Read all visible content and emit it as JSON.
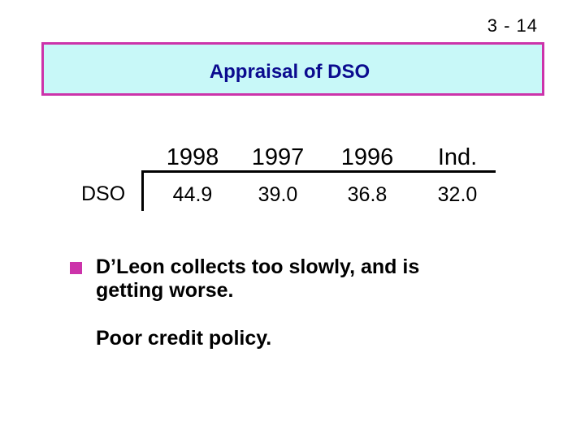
{
  "slide": {
    "number": "3 - 14",
    "title": "Appraisal of DSO"
  },
  "table": {
    "row_label": "DSO",
    "columns": [
      {
        "header": "1998",
        "value": "44.9"
      },
      {
        "header": "1997",
        "value": "39.0"
      },
      {
        "header": "1996",
        "value": "36.8"
      },
      {
        "header": "Ind.",
        "value": "32.0"
      }
    ]
  },
  "bullets": {
    "main_line1": "D’Leon collects too slowly, and is",
    "main_line2": "getting worse.",
    "sub": "Poor credit policy."
  },
  "colors": {
    "title_fill": "#c8f8f8",
    "title_border": "#cc33aa",
    "title_text": "#0b0b8f",
    "bullet": "#cc33aa"
  }
}
